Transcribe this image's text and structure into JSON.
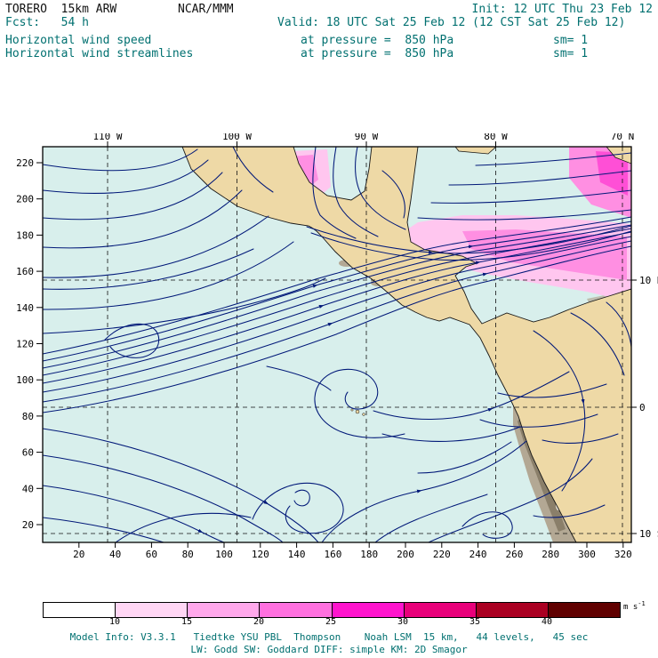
{
  "header": {
    "model": "TORERO  15km ARW",
    "center": "NCAR/MMM",
    "init": "Init: 12 UTC Thu 23 Feb 12",
    "fcst": "Fcst:   54 h",
    "valid": "Valid: 18 UTC Sat 25 Feb 12 (12 CST Sat 25 Feb 12)",
    "field1": "Horizontal wind speed",
    "field1_level": "at pressure =  850 hPa",
    "field1_sm": "sm= 1",
    "field2": "Horizontal wind streamlines",
    "field2_level": "at pressure =  850 hPa",
    "field2_sm": "sm= 1"
  },
  "map": {
    "top_labels": [
      "110 W",
      "100 W",
      "90 W",
      "80 W",
      "70 N"
    ],
    "right_labels": [
      "10 N",
      "0",
      "10 S"
    ],
    "left_labels": [
      "220",
      "200",
      "180",
      "160",
      "140",
      "120",
      "100",
      "80",
      "60",
      "40",
      "20"
    ],
    "bottom_labels": [
      "20",
      "40",
      "60",
      "80",
      "100",
      "120",
      "140",
      "160",
      "180",
      "200",
      "220",
      "240",
      "260",
      "280",
      "300",
      "320"
    ]
  },
  "colorbar": {
    "labels": [
      "10",
      "15",
      "20",
      "25",
      "30",
      "35",
      "40"
    ],
    "unit": "m s",
    "unit_exp": "-1",
    "colors": [
      "#ffffff",
      "#ffd6f4",
      "#ffa8eb",
      "#ff70df",
      "#ff14cd",
      "#e8007a",
      "#aa0022",
      "#600000"
    ]
  },
  "footer": {
    "line1": "Model Info: V3.3.1   Tiedtke YSU PBL  Thompson    Noah LSM  15 km,   44 levels,   45 sec",
    "line2": "LW: Godd SW: Goddard DIFF: simple KM: 2D Smagor"
  },
  "colors": {
    "ocean": "#d8efec",
    "land": "#eed9a6",
    "terrain": "#b3a894",
    "shade_light": "#ffc6ef",
    "shade_mid": "#ff8fe2",
    "streamline": "#001878",
    "text_teal": "#007070"
  }
}
